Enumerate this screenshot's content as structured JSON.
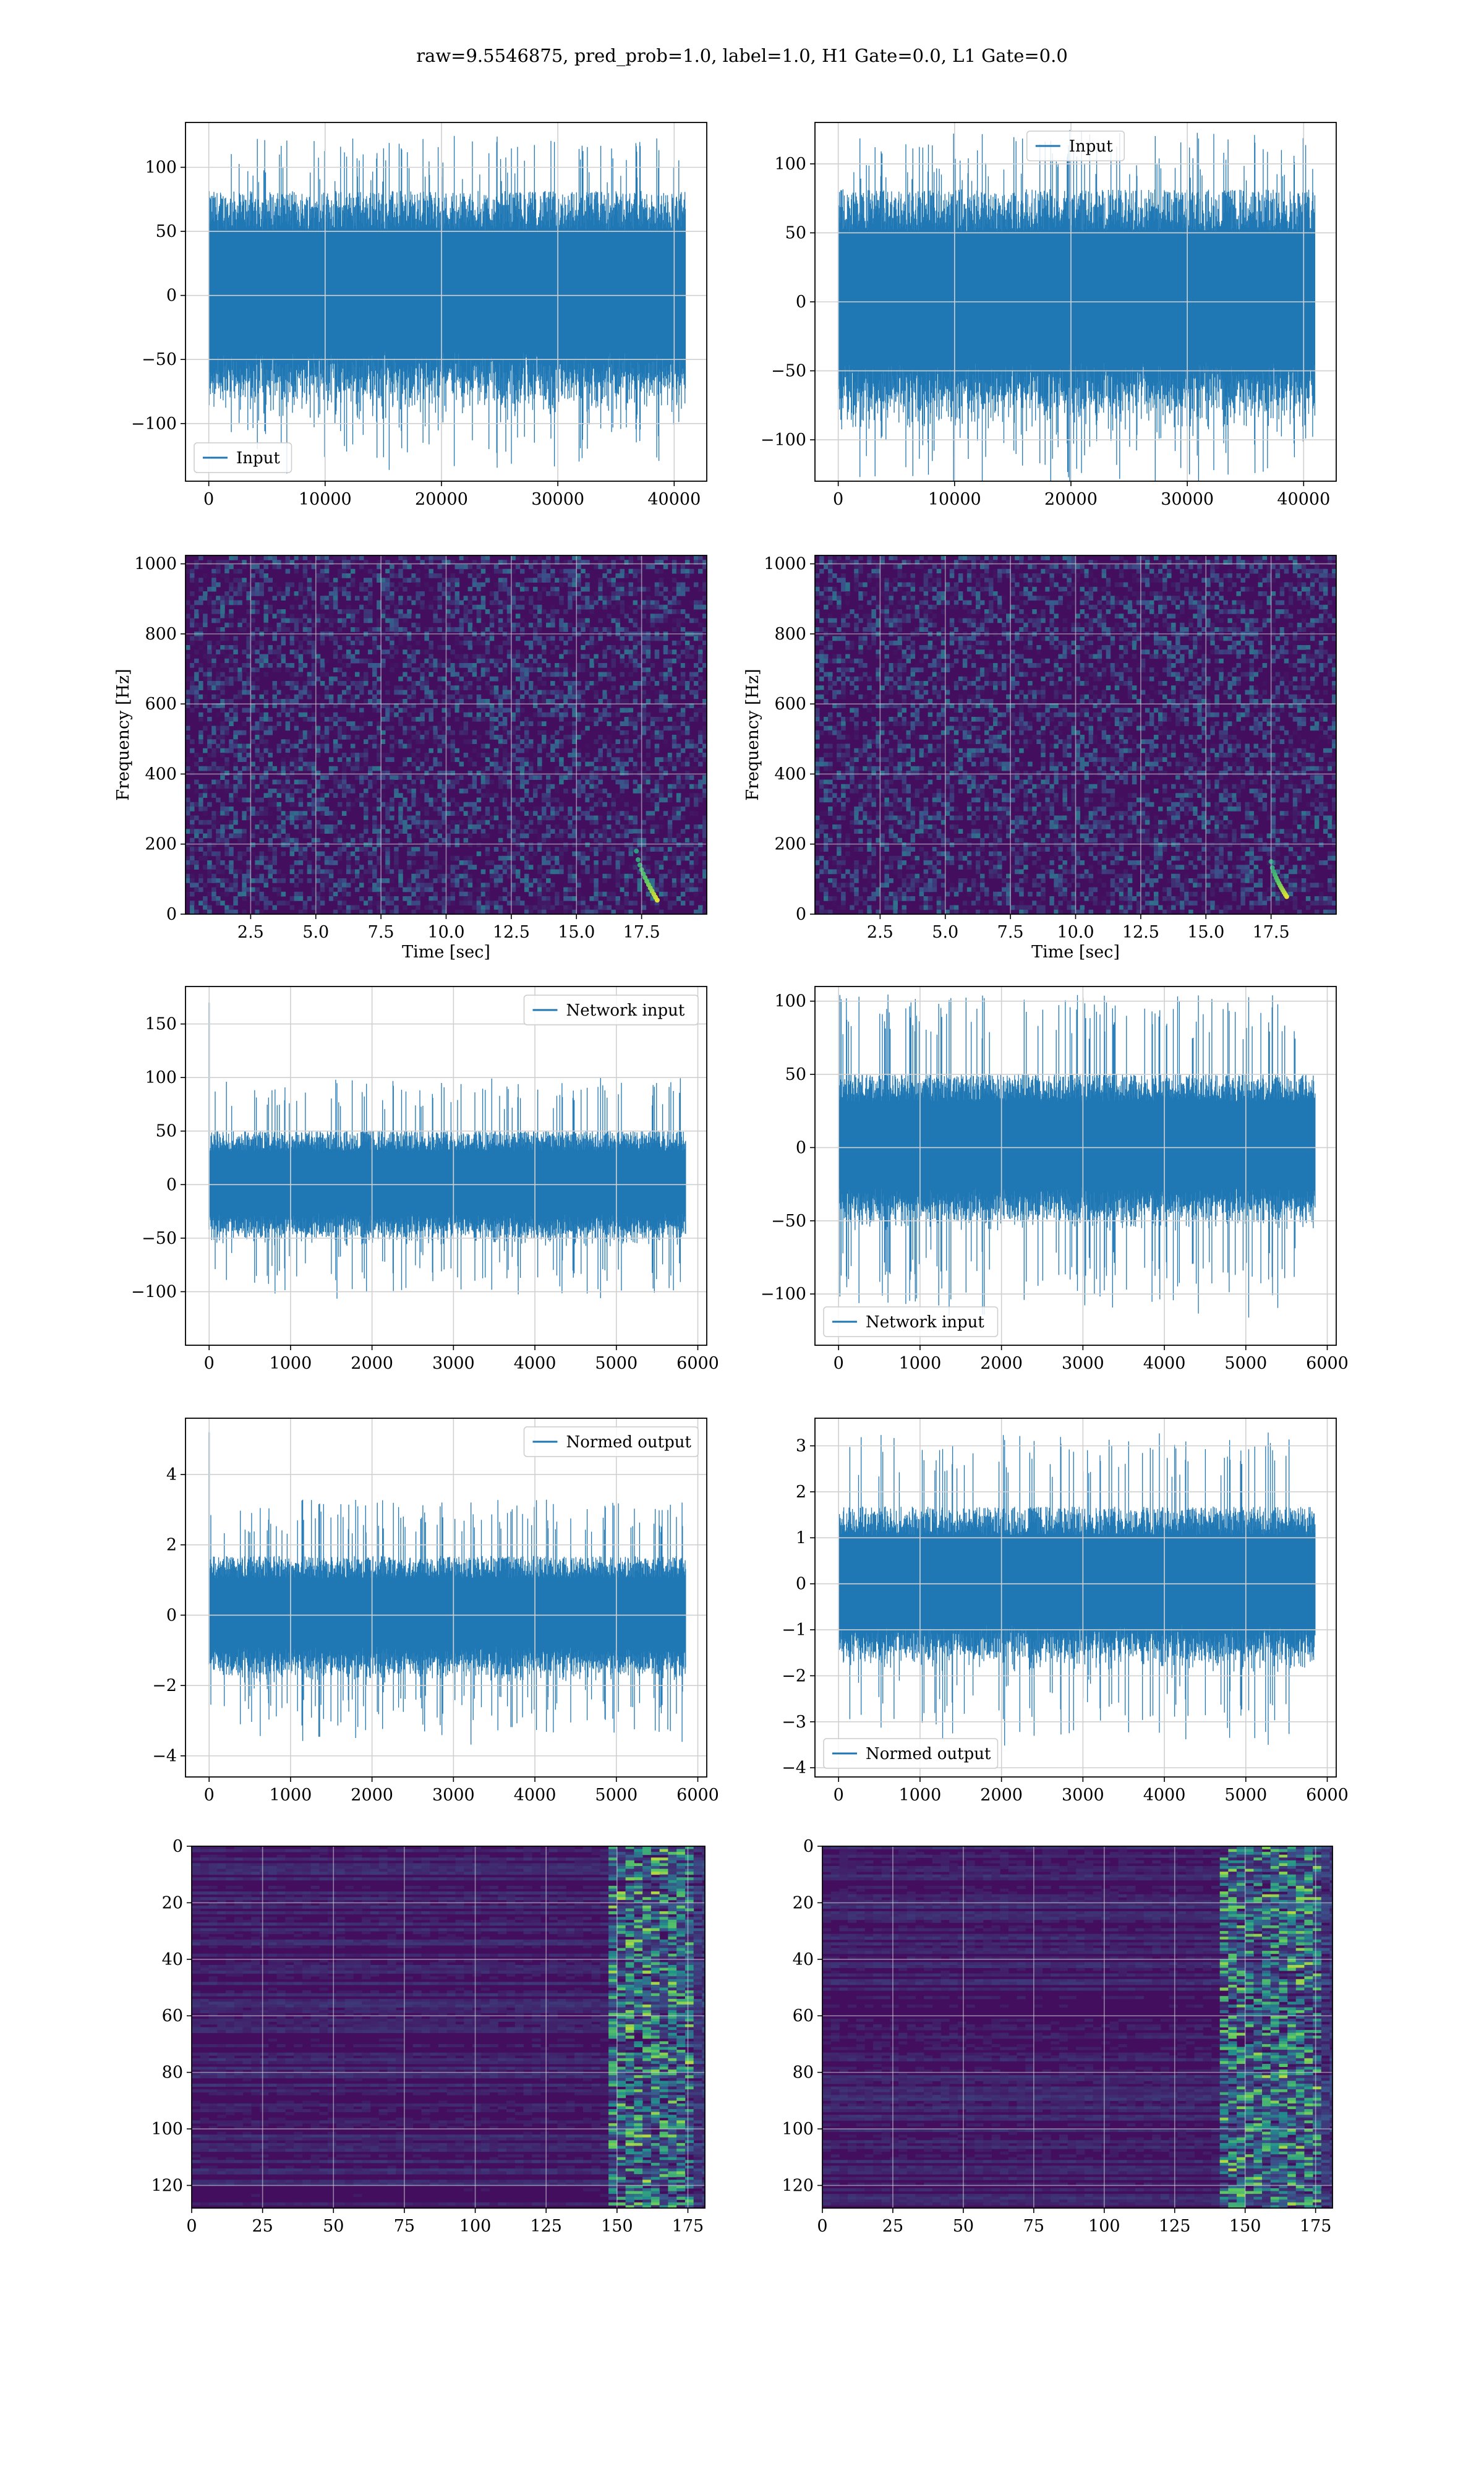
{
  "figure": {
    "suptitle": "raw=9.5546875, pred_prob=1.0, label=1.0, H1 Gate=0.0, L1 Gate=0.0"
  },
  "colors": {
    "line": "#1f77b4",
    "grid": "#d0d0d0",
    "spec_bg": "#3b1a66",
    "spec_mid": "#31688e",
    "spec_hi": "#35b779",
    "spec_peak": "#fde725"
  },
  "chart_data": [
    {
      "id": "r1c1",
      "type": "line",
      "title": "",
      "xlabel": "",
      "ylabel": "",
      "xlim": [
        -2000,
        42800
      ],
      "ylim": [
        -145,
        135
      ],
      "xticks": [
        0,
        10000,
        20000,
        30000,
        40000
      ],
      "xtick_labels": [
        "0",
        "10000",
        "20000",
        "30000",
        "40000"
      ],
      "yticks": [
        -100,
        -50,
        0,
        50,
        100
      ],
      "ytick_labels": [
        "−100",
        "−50",
        "0",
        "50",
        "100"
      ],
      "grid": true,
      "legend": "lower left",
      "series": [
        {
          "name": "Input",
          "x_range": [
            0,
            40959
          ],
          "core_amplitude": 68,
          "spike_amplitude": 125
        }
      ]
    },
    {
      "id": "r1c2",
      "type": "line",
      "title": "",
      "xlabel": "",
      "ylabel": "",
      "xlim": [
        -2000,
        42800
      ],
      "ylim": [
        -130,
        130
      ],
      "xticks": [
        0,
        10000,
        20000,
        30000,
        40000
      ],
      "xtick_labels": [
        "0",
        "10000",
        "20000",
        "30000",
        "40000"
      ],
      "yticks": [
        -100,
        -50,
        0,
        50,
        100
      ],
      "ytick_labels": [
        "−100",
        "−50",
        "0",
        "50",
        "100"
      ],
      "grid": true,
      "legend": "upper center",
      "series": [
        {
          "name": "Input",
          "x_range": [
            0,
            40959
          ],
          "core_amplitude": 68,
          "spike_amplitude": 125
        }
      ]
    },
    {
      "id": "r2c1",
      "type": "heatmap",
      "title": "",
      "xlabel": "Time [sec]",
      "ylabel": "Frequency [Hz]",
      "xlim": [
        0,
        20
      ],
      "ylim": [
        0,
        1024
      ],
      "xticks": [
        2.5,
        5.0,
        7.5,
        10.0,
        12.5,
        15.0,
        17.5
      ],
      "xtick_labels": [
        "2.5",
        "5.0",
        "7.5",
        "10.0",
        "12.5",
        "15.0",
        "17.5"
      ],
      "yticks": [
        0,
        200,
        400,
        600,
        800,
        1000
      ],
      "ytick_labels": [
        "0",
        "200",
        "400",
        "600",
        "800",
        "1000"
      ],
      "grid": true,
      "chirp": {
        "t_start": 17.3,
        "t_end": 18.1,
        "f_start": 180,
        "f_end": 40
      }
    },
    {
      "id": "r2c2",
      "type": "heatmap",
      "title": "",
      "xlabel": "Time [sec]",
      "ylabel": "Frequency [Hz]",
      "xlim": [
        0,
        20
      ],
      "ylim": [
        0,
        1024
      ],
      "xticks": [
        2.5,
        5.0,
        7.5,
        10.0,
        12.5,
        15.0,
        17.5
      ],
      "xtick_labels": [
        "2.5",
        "5.0",
        "7.5",
        "10.0",
        "12.5",
        "15.0",
        "17.5"
      ],
      "yticks": [
        0,
        200,
        400,
        600,
        800,
        1000
      ],
      "ytick_labels": [
        "0",
        "200",
        "400",
        "600",
        "800",
        "1000"
      ],
      "grid": true,
      "chirp": {
        "t_start": 17.5,
        "t_end": 18.1,
        "f_start": 150,
        "f_end": 50
      }
    },
    {
      "id": "r3c1",
      "type": "line",
      "title": "",
      "xlabel": "",
      "ylabel": "",
      "xlim": [
        -290,
        6110
      ],
      "ylim": [
        -150,
        185
      ],
      "xticks": [
        0,
        1000,
        2000,
        3000,
        4000,
        5000,
        6000
      ],
      "xtick_labels": [
        "0",
        "1000",
        "2000",
        "3000",
        "4000",
        "5000",
        "6000"
      ],
      "yticks": [
        -100,
        -50,
        0,
        50,
        100,
        150
      ],
      "ytick_labels": [
        "−100",
        "−50",
        "0",
        "50",
        "100",
        "150"
      ],
      "grid": true,
      "legend": "upper right",
      "series": [
        {
          "name": "Network input",
          "x_range": [
            0,
            5850
          ],
          "core_amplitude": 42,
          "spike_amplitude": 100,
          "first_spike": 170
        }
      ]
    },
    {
      "id": "r3c2",
      "type": "line",
      "title": "",
      "xlabel": "",
      "ylabel": "",
      "xlim": [
        -290,
        6110
      ],
      "ylim": [
        -135,
        110
      ],
      "xticks": [
        0,
        1000,
        2000,
        3000,
        4000,
        5000,
        6000
      ],
      "xtick_labels": [
        "0",
        "1000",
        "2000",
        "3000",
        "4000",
        "5000",
        "6000"
      ],
      "yticks": [
        -100,
        -50,
        0,
        50,
        100
      ],
      "ytick_labels": [
        "−100",
        "−50",
        "0",
        "50",
        "100"
      ],
      "grid": true,
      "legend": "lower left",
      "series": [
        {
          "name": "Network input",
          "x_range": [
            0,
            5850
          ],
          "core_amplitude": 42,
          "spike_amplitude": 105
        }
      ]
    },
    {
      "id": "r4c1",
      "type": "line",
      "title": "",
      "xlabel": "",
      "ylabel": "",
      "xlim": [
        -290,
        6110
      ],
      "ylim": [
        -4.6,
        5.6
      ],
      "xticks": [
        0,
        1000,
        2000,
        3000,
        4000,
        5000,
        6000
      ],
      "xtick_labels": [
        "0",
        "1000",
        "2000",
        "3000",
        "4000",
        "5000",
        "6000"
      ],
      "yticks": [
        -4,
        -2,
        0,
        2,
        4
      ],
      "ytick_labels": [
        "−4",
        "−2",
        "0",
        "2",
        "4"
      ],
      "grid": true,
      "legend": "upper right",
      "series": [
        {
          "name": "Normed output",
          "x_range": [
            0,
            5850
          ],
          "core_amplitude": 1.4,
          "spike_amplitude": 3.3,
          "first_spike": 5.2
        }
      ]
    },
    {
      "id": "r4c2",
      "type": "line",
      "title": "",
      "xlabel": "",
      "ylabel": "",
      "xlim": [
        -290,
        6110
      ],
      "ylim": [
        -4.2,
        3.6
      ],
      "xticks": [
        0,
        1000,
        2000,
        3000,
        4000,
        5000,
        6000
      ],
      "xtick_labels": [
        "0",
        "1000",
        "2000",
        "3000",
        "4000",
        "5000",
        "6000"
      ],
      "yticks": [
        -4,
        -3,
        -2,
        -1,
        0,
        1,
        2,
        3
      ],
      "ytick_labels": [
        "−4",
        "−3",
        "−2",
        "−1",
        "0",
        "1",
        "2",
        "3"
      ],
      "grid": true,
      "legend": "lower left",
      "series": [
        {
          "name": "Normed output",
          "x_range": [
            0,
            5850
          ],
          "core_amplitude": 1.4,
          "spike_amplitude": 3.3
        }
      ]
    },
    {
      "id": "r5c1",
      "type": "heatmap",
      "title": "",
      "xlabel": "",
      "ylabel": "",
      "xlim": [
        0,
        181
      ],
      "ylim": [
        128,
        0
      ],
      "xticks": [
        0,
        25,
        50,
        75,
        100,
        125,
        150,
        175
      ],
      "xtick_labels": [
        "0",
        "25",
        "50",
        "75",
        "100",
        "125",
        "150",
        "175"
      ],
      "yticks": [
        0,
        20,
        40,
        60,
        80,
        100,
        120
      ],
      "ytick_labels": [
        "0",
        "20",
        "40",
        "60",
        "80",
        "100",
        "120"
      ],
      "grid": true,
      "hot_column_range": [
        145,
        175
      ]
    },
    {
      "id": "r5c2",
      "type": "heatmap",
      "title": "",
      "xlabel": "",
      "ylabel": "",
      "xlim": [
        0,
        181
      ],
      "ylim": [
        128,
        0
      ],
      "xticks": [
        0,
        25,
        50,
        75,
        100,
        125,
        150,
        175
      ],
      "xtick_labels": [
        "0",
        "25",
        "50",
        "75",
        "100",
        "125",
        "150",
        "175"
      ],
      "yticks": [
        0,
        20,
        40,
        60,
        80,
        100,
        120
      ],
      "ytick_labels": [
        "0",
        "20",
        "40",
        "60",
        "80",
        "100",
        "120"
      ],
      "grid": true,
      "hot_column_range": [
        140,
        175
      ]
    }
  ]
}
